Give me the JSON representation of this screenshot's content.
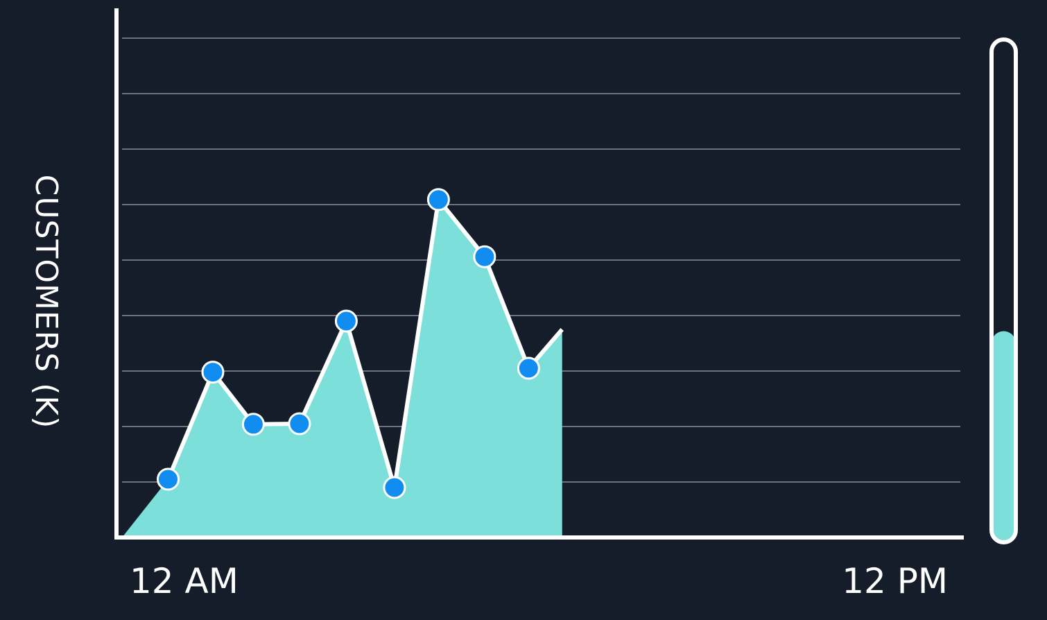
{
  "colors": {
    "background": "#151d2a",
    "area": "#7ddfd9",
    "line": "#ffffff",
    "point": "#118cf0",
    "grid": "#8a909a",
    "axis": "#ffffff"
  },
  "chart_data": {
    "type": "area",
    "title": "",
    "ylabel": "CUSTOMERS (K)",
    "xlabel": "",
    "x_tick_labels": [
      "12 AM",
      "12 PM"
    ],
    "xlim": [
      0,
      12
    ],
    "ylim": [
      0,
      9
    ],
    "grid": true,
    "y_grid_lines": [
      1,
      2,
      3,
      4,
      5,
      6,
      7,
      8,
      9
    ],
    "series": [
      {
        "x": [
          0,
          0.66,
          1.3,
          1.88,
          2.54,
          3.21,
          3.9,
          4.53,
          5.19,
          5.82,
          6.3
        ],
        "y": [
          0,
          1.05,
          2.98,
          2.04,
          2.05,
          3.9,
          0.9,
          6.09,
          5.06,
          3.05,
          3.75
        ],
        "markers": [
          false,
          true,
          true,
          true,
          true,
          true,
          true,
          true,
          true,
          true,
          false
        ]
      }
    ]
  },
  "level_gauge": {
    "fill_fraction": 0.42
  }
}
